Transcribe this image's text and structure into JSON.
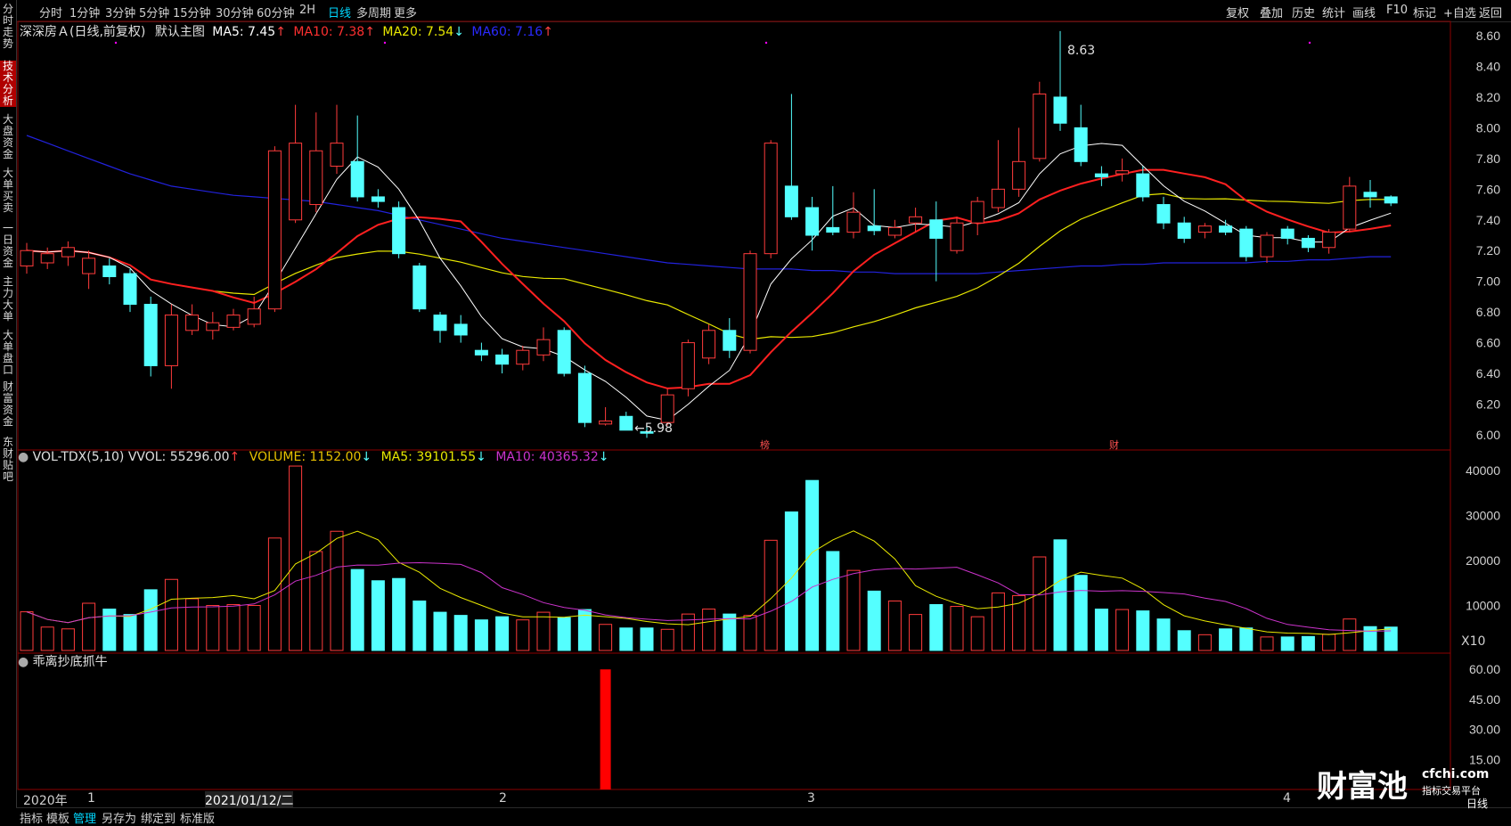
{
  "toolbar": {
    "periods": [
      "分时",
      "1分钟",
      "3分钟",
      "5分钟",
      "15分钟",
      "30分钟",
      "60分钟",
      "2H",
      "日线",
      "多周期",
      "更多"
    ],
    "active_period": "日线",
    "tools": [
      "复权",
      "叠加",
      "历史",
      "统计",
      "画线",
      "F10",
      "标记",
      "+自选",
      "返回"
    ]
  },
  "sidebar": {
    "tabs": [
      "分时走势",
      "技术分析",
      "大盘资金",
      "大单买卖",
      "一日资金",
      "主力大单",
      "大单盘口",
      "财富资金",
      "东财贴吧"
    ],
    "active": "技术分析"
  },
  "main_header": {
    "stock": "深深房Ａ(日线,前复权)",
    "template": "默认主图",
    "ma5": "MA5: 7.45",
    "ma10": "MA10: 7.38",
    "ma20": "MA20: 7.54",
    "ma60": "MA60: 7.16",
    "high_label": "8.63",
    "low_label": "5.98",
    "marker1": "榜",
    "marker2": "财"
  },
  "vol_header": {
    "name": "VOL-TDX(5,10)",
    "vvol": "VVOL: 55296.00",
    "volume": "VOLUME: 1152.00",
    "ma5": "MA5: 39101.55",
    "ma10": "MA10: 40365.32",
    "unit": "X10"
  },
  "ind_header": {
    "name": "乖离抄底抓牛"
  },
  "x_labels": [
    "2020年",
    "1",
    "2021/01/12/二",
    "2",
    "3",
    "4"
  ],
  "bottom_bar": {
    "items": [
      "指标",
      "模板",
      "管理",
      "另存为",
      "绑定到",
      "标准版"
    ],
    "active": "管理"
  },
  "logo": {
    "main": "财富池",
    "site": "cfchi.com",
    "sub": "指标交易平台",
    "corner": "日线"
  },
  "colors": {
    "up": "#ff3b3b",
    "down": "#54ffff",
    "ma5": "#ffffff",
    "ma10": "#ff2020",
    "ma20": "#e8e800",
    "ma60": "#2222dd",
    "vma10": "#cc33cc"
  },
  "chart_data": [
    {
      "type": "candlestick",
      "y_ticks": [
        8.6,
        8.4,
        8.2,
        8.0,
        7.8,
        7.6,
        7.4,
        7.2,
        7.0,
        6.8,
        6.6,
        6.4,
        6.2,
        6.0
      ],
      "ylim": [
        5.93,
        8.67
      ],
      "candles": [
        [
          7.1,
          7.2,
          7.25,
          7.05
        ],
        [
          7.12,
          7.18,
          7.22,
          7.08
        ],
        [
          7.16,
          7.22,
          7.26,
          7.1
        ],
        [
          7.05,
          7.15,
          7.2,
          6.95
        ],
        [
          7.1,
          7.03,
          7.15,
          6.98
        ],
        [
          7.05,
          6.85,
          7.08,
          6.8
        ],
        [
          6.85,
          6.45,
          6.9,
          6.38
        ],
        [
          6.45,
          6.78,
          6.85,
          6.3
        ],
        [
          6.68,
          6.78,
          6.85,
          6.65
        ],
        [
          6.68,
          6.73,
          6.8,
          6.62
        ],
        [
          6.7,
          6.78,
          6.82,
          6.68
        ],
        [
          6.72,
          6.82,
          6.9,
          6.7
        ],
        [
          6.82,
          7.85,
          7.88,
          6.8
        ],
        [
          7.4,
          7.9,
          8.15,
          7.38
        ],
        [
          7.5,
          7.85,
          8.1,
          7.45
        ],
        [
          7.75,
          7.9,
          8.15,
          7.7
        ],
        [
          7.78,
          7.55,
          8.08,
          7.52
        ],
        [
          7.55,
          7.52,
          7.6,
          7.48
        ],
        [
          7.48,
          7.18,
          7.52,
          7.15
        ],
        [
          7.1,
          6.82,
          7.12,
          6.8
        ],
        [
          6.78,
          6.68,
          6.8,
          6.6
        ],
        [
          6.72,
          6.65,
          6.78,
          6.6
        ],
        [
          6.55,
          6.52,
          6.6,
          6.48
        ],
        [
          6.52,
          6.46,
          6.56,
          6.4
        ],
        [
          6.46,
          6.55,
          6.58,
          6.42
        ],
        [
          6.52,
          6.62,
          6.7,
          6.48
        ],
        [
          6.68,
          6.4,
          6.7,
          6.38
        ],
        [
          6.4,
          6.08,
          6.45,
          6.05
        ],
        [
          6.07,
          6.09,
          6.18,
          6.06
        ],
        [
          6.12,
          6.03,
          6.15,
          6.03
        ],
        [
          6.02,
          6.01,
          6.05,
          5.98
        ],
        [
          6.08,
          6.26,
          6.3,
          6.06
        ],
        [
          6.3,
          6.6,
          6.62,
          6.25
        ],
        [
          6.5,
          6.68,
          6.72,
          6.46
        ],
        [
          6.68,
          6.55,
          6.76,
          6.5
        ],
        [
          6.55,
          7.18,
          7.2,
          6.53
        ],
        [
          7.18,
          7.9,
          7.92,
          7.15
        ],
        [
          7.62,
          7.42,
          8.22,
          7.4
        ],
        [
          7.48,
          7.3,
          7.55,
          7.2
        ],
        [
          7.35,
          7.32,
          7.62,
          7.3
        ],
        [
          7.32,
          7.45,
          7.58,
          7.28
        ],
        [
          7.36,
          7.33,
          7.6,
          7.3
        ],
        [
          7.3,
          7.35,
          7.4,
          7.28
        ],
        [
          7.38,
          7.42,
          7.48,
          7.32
        ],
        [
          7.4,
          7.28,
          7.52,
          7.0
        ],
        [
          7.2,
          7.38,
          7.42,
          7.18
        ],
        [
          7.38,
          7.52,
          7.55,
          7.3
        ],
        [
          7.48,
          7.6,
          7.92,
          7.45
        ],
        [
          7.6,
          7.78,
          8.0,
          7.55
        ],
        [
          7.8,
          8.22,
          8.3,
          7.78
        ],
        [
          8.2,
          8.03,
          8.63,
          7.98
        ],
        [
          8.0,
          7.78,
          8.15,
          7.75
        ],
        [
          7.7,
          7.68,
          7.75,
          7.62
        ],
        [
          7.7,
          7.72,
          7.8,
          7.65
        ],
        [
          7.7,
          7.55,
          7.75,
          7.52
        ],
        [
          7.5,
          7.38,
          7.55,
          7.34
        ],
        [
          7.38,
          7.28,
          7.42,
          7.25
        ],
        [
          7.32,
          7.36,
          7.38,
          7.28
        ],
        [
          7.36,
          7.32,
          7.4,
          7.3
        ],
        [
          7.34,
          7.16,
          7.36,
          7.13
        ],
        [
          7.16,
          7.3,
          7.32,
          7.12
        ],
        [
          7.34,
          7.28,
          7.36,
          7.24
        ],
        [
          7.28,
          7.22,
          7.3,
          7.19
        ],
        [
          7.22,
          7.32,
          7.34,
          7.18
        ],
        [
          7.34,
          7.62,
          7.68,
          7.32
        ],
        [
          7.58,
          7.55,
          7.66,
          7.48
        ],
        [
          7.55,
          7.51,
          7.56,
          7.49
        ]
      ]
    },
    {
      "type": "bar",
      "name": "VOL-TDX",
      "y_ticks": [
        40000,
        30000,
        20000,
        10000
      ],
      "ylim": [
        0,
        42000
      ],
      "values": [
        8600,
        5200,
        4800,
        10500,
        9200,
        8000,
        13500,
        15800,
        11500,
        10000,
        10200,
        10000,
        25000,
        41000,
        22000,
        26500,
        18000,
        15500,
        16000,
        11000,
        8500,
        7800,
        6800,
        7500,
        6800,
        8500,
        7300,
        9100,
        5800,
        5000,
        5000,
        4700,
        8100,
        9200,
        8100,
        7800,
        24500,
        30800,
        37800,
        22000,
        17800,
        13200,
        11000,
        8000,
        10200,
        9800,
        7500,
        12800,
        12200,
        20800,
        24600,
        16700,
        9200,
        9100,
        8800,
        7000,
        4400,
        3500,
        4800,
        5000,
        3000,
        3000,
        3100,
        3600,
        7000,
        5300,
        5200
      ]
    },
    {
      "type": "bar",
      "name": "乖离抄底抓牛",
      "y_ticks": [
        60.0,
        45.0,
        30.0,
        15.0
      ],
      "ylim": [
        0,
        65
      ],
      "signal_index": 28,
      "signal_value": 60
    }
  ]
}
